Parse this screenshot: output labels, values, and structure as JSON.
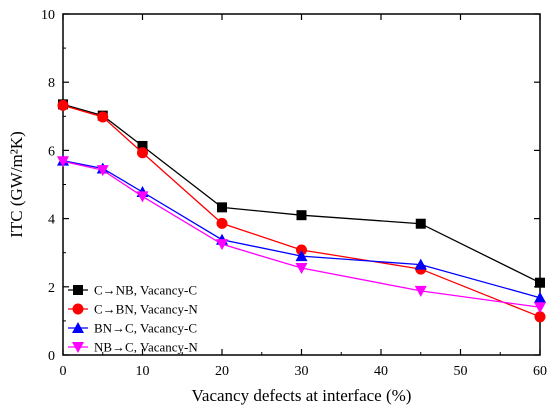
{
  "chart_data": {
    "type": "line",
    "xlabel": "Vacancy defects at interface (%)",
    "ylabel": "ITC (GW/m²K)",
    "xlim": [
      0,
      60
    ],
    "ylim": [
      0,
      10
    ],
    "xticks": [
      0,
      10,
      20,
      30,
      40,
      50,
      60
    ],
    "yticks": [
      0,
      2,
      4,
      6,
      8,
      10
    ],
    "grid": false,
    "legend_position": "bottom-left",
    "series": [
      {
        "name": "C→NB, Vacancy-C",
        "color": "#000000",
        "marker": "square",
        "x": [
          0,
          5,
          10,
          20,
          30,
          45,
          60
        ],
        "y": [
          7.35,
          7.02,
          6.13,
          4.33,
          4.1,
          3.85,
          2.12
        ]
      },
      {
        "name": "C→BN, Vacancy-N",
        "color": "#ff0000",
        "marker": "circle",
        "x": [
          0,
          5,
          10,
          20,
          30,
          45,
          60
        ],
        "y": [
          7.32,
          6.98,
          5.93,
          3.86,
          3.08,
          2.52,
          1.12
        ]
      },
      {
        "name": "BN→C, Vacancy-C",
        "color": "#0000ff",
        "marker": "triangle-up",
        "x": [
          0,
          5,
          10,
          20,
          30,
          45,
          60
        ],
        "y": [
          5.7,
          5.47,
          4.78,
          3.38,
          2.9,
          2.65,
          1.68
        ]
      },
      {
        "name": "NB→C, Vacancy-N",
        "color": "#ff00ff",
        "marker": "triangle-down",
        "x": [
          0,
          5,
          10,
          20,
          30,
          45,
          60
        ],
        "y": [
          5.68,
          5.42,
          4.65,
          3.25,
          2.55,
          1.88,
          1.4
        ]
      }
    ]
  }
}
